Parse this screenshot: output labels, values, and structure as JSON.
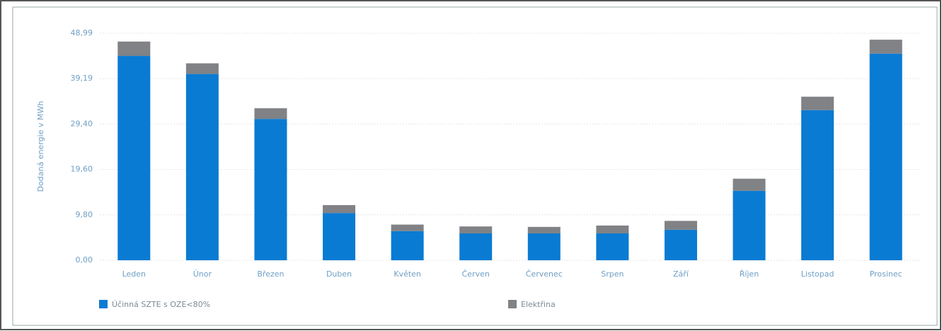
{
  "chart_data": {
    "type": "stacked-bar",
    "y_label": "Dodaná energie v MWh",
    "categories": [
      "Leden",
      "Únor",
      "Březen",
      "Duben",
      "Květen",
      "Červen",
      "Červenec",
      "Srpen",
      "Září",
      "Říjen",
      "Listopad",
      "Prosinec"
    ],
    "series": [
      {
        "name": "Účinná SZTE s OZE<80%",
        "color": "#0a7bd3",
        "values": [
          44.1,
          40.2,
          30.5,
          10.2,
          6.3,
          5.8,
          5.8,
          5.8,
          6.6,
          15.0,
          32.4,
          44.6
        ]
      },
      {
        "name": "Elektřina",
        "color": "#808285",
        "values": [
          3.1,
          2.3,
          2.3,
          1.7,
          1.4,
          1.5,
          1.4,
          1.7,
          1.9,
          2.6,
          2.9,
          3.0
        ]
      }
    ],
    "ylim": [
      0,
      48.99
    ],
    "yticks": [
      {
        "value": 0,
        "label": "0,00"
      },
      {
        "value": 9.8,
        "label": "9,80"
      },
      {
        "value": 19.6,
        "label": "19,60"
      },
      {
        "value": 29.4,
        "label": "29,40"
      },
      {
        "value": 39.19,
        "label": "39,19"
      },
      {
        "value": 48.99,
        "label": "48,99"
      }
    ],
    "grid": true
  }
}
